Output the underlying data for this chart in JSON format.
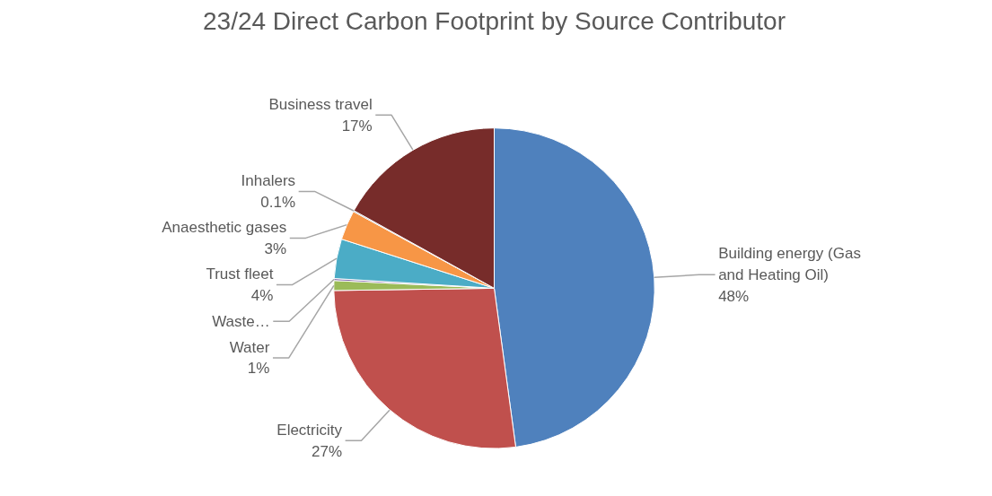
{
  "chart_data": {
    "type": "pie",
    "title": "23/24 Direct Carbon Footprint by Source Contributor",
    "categories": [
      "Building energy (Gas and Heating Oil)",
      "Electricity",
      "Water",
      "Waste…",
      "Trust fleet",
      "Anaesthetic gases",
      "Inhalers",
      "Business travel"
    ],
    "values": [
      48,
      27,
      1,
      0.2,
      4,
      3,
      0.1,
      17
    ],
    "value_labels": [
      "48%",
      "27%",
      "1%",
      null,
      "4%",
      "3%",
      "0.1%",
      "17%"
    ],
    "colors": [
      "#4f81bd",
      "#c0504d",
      "#9bbb59",
      "#8064a2",
      "#4bacc6",
      "#f79646",
      "#2c4d75",
      "#772c2a"
    ]
  }
}
